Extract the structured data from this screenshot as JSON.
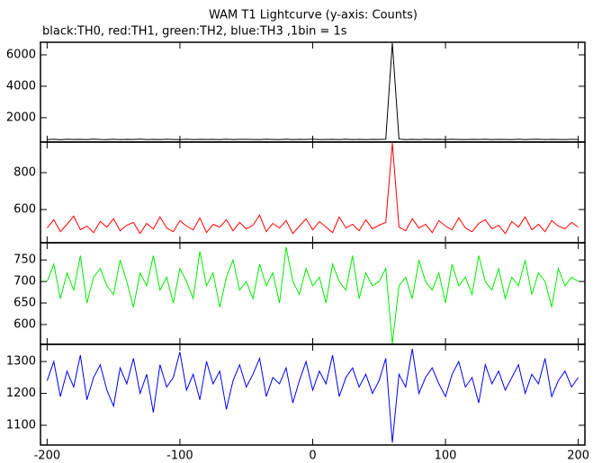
{
  "chart_data": {
    "type": "line",
    "title": "WAM T1 Lightcurve (y-axis: Counts)",
    "subtitle": "black:TH0, red:TH1, green:TH2, blue:TH3 ,1bin = 1s",
    "xlim": [
      -205,
      205
    ],
    "xticks": [
      -200,
      -100,
      0,
      100,
      200
    ],
    "x": [
      -200,
      -195,
      -190,
      -185,
      -180,
      -175,
      -170,
      -165,
      -160,
      -155,
      -150,
      -145,
      -140,
      -135,
      -130,
      -125,
      -120,
      -115,
      -110,
      -105,
      -100,
      -95,
      -90,
      -85,
      -80,
      -75,
      -70,
      -65,
      -60,
      -55,
      -50,
      -45,
      -40,
      -35,
      -30,
      -25,
      -20,
      -15,
      -10,
      -5,
      0,
      5,
      10,
      15,
      20,
      25,
      30,
      35,
      40,
      45,
      50,
      55,
      60,
      65,
      70,
      75,
      80,
      85,
      90,
      95,
      100,
      105,
      110,
      115,
      120,
      125,
      130,
      135,
      140,
      145,
      150,
      155,
      160,
      165,
      170,
      175,
      180,
      185,
      190,
      195,
      200
    ],
    "series": [
      {
        "color": "#000000",
        "ylim": [
          450,
          6800
        ],
        "yticks": [
          2000,
          4000,
          6000
        ],
        "values": [
          610,
          625,
          600,
          630,
          615,
          620,
          605,
          635,
          618,
          612,
          628,
          607,
          622,
          615,
          633,
          610,
          620,
          604,
          626,
          617,
          612,
          630,
          608,
          621,
          616,
          624,
          611,
          627,
          605,
          619,
          623,
          614,
          609,
          629,
          617,
          612,
          625,
          606,
          620,
          618,
          631,
          610,
          615,
          622,
          608,
          627,
          613,
          619,
          604,
          624,
          616,
          630,
          6750,
          640,
          612,
          620,
          607,
          628,
          615,
          621,
          610,
          626,
          618,
          605,
          623,
          614,
          629,
          611,
          620,
          616,
          606,
          625,
          613,
          619,
          627,
          610,
          622,
          615,
          608,
          624,
          617
        ]
      },
      {
        "color": "#ff0000",
        "ylim": [
          420,
          966
        ],
        "yticks": [
          600,
          800
        ],
        "values": [
          500,
          545,
          480,
          520,
          565,
          490,
          510,
          475,
          535,
          505,
          550,
          485,
          515,
          530,
          470,
          525,
          495,
          560,
          500,
          480,
          540,
          510,
          490,
          555,
          475,
          520,
          505,
          545,
          485,
          530,
          495,
          515,
          570,
          480,
          525,
          500,
          540,
          470,
          510,
          550,
          490,
          535,
          505,
          475,
          560,
          500,
          520,
          485,
          545,
          495,
          515,
          530,
          960,
          505,
          485,
          550,
          500,
          520,
          475,
          540,
          510,
          490,
          555,
          500,
          480,
          525,
          545,
          495,
          515,
          470,
          535,
          505,
          560,
          490,
          520,
          480,
          540,
          510,
          495,
          530,
          505
        ]
      },
      {
        "color": "#00ee00",
        "ylim": [
          554,
          790
        ],
        "yticks": [
          600,
          650,
          700,
          750
        ],
        "values": [
          700,
          740,
          660,
          720,
          680,
          760,
          650,
          710,
          730,
          690,
          670,
          750,
          700,
          640,
          720,
          690,
          760,
          680,
          710,
          650,
          730,
          700,
          660,
          770,
          690,
          720,
          640,
          710,
          750,
          680,
          700,
          660,
          740,
          690,
          720,
          650,
          780,
          700,
          670,
          730,
          690,
          710,
          650,
          740,
          700,
          680,
          760,
          660,
          720,
          690,
          700,
          730,
          555,
          690,
          710,
          660,
          750,
          700,
          680,
          720,
          650,
          740,
          690,
          710,
          670,
          760,
          700,
          680,
          730,
          660,
          710,
          690,
          750,
          670,
          720,
          700,
          640,
          730,
          690,
          710,
          700
        ]
      },
      {
        "color": "#0000ff",
        "ylim": [
          1038,
          1354
        ],
        "yticks": [
          1100,
          1200,
          1300
        ],
        "values": [
          1240,
          1300,
          1190,
          1270,
          1220,
          1320,
          1180,
          1250,
          1290,
          1210,
          1160,
          1280,
          1230,
          1310,
          1200,
          1260,
          1140,
          1290,
          1220,
          1250,
          1330,
          1210,
          1260,
          1180,
          1300,
          1230,
          1270,
          1150,
          1240,
          1290,
          1220,
          1260,
          1310,
          1190,
          1250,
          1230,
          1280,
          1170,
          1240,
          1300,
          1210,
          1270,
          1230,
          1320,
          1190,
          1250,
          1280,
          1220,
          1260,
          1200,
          1240,
          1310,
          1045,
          1260,
          1220,
          1340,
          1200,
          1250,
          1280,
          1230,
          1190,
          1260,
          1300,
          1220,
          1250,
          1170,
          1290,
          1230,
          1270,
          1210,
          1250,
          1290,
          1200,
          1260,
          1230,
          1310,
          1190,
          1240,
          1270,
          1220,
          1250
        ]
      }
    ]
  }
}
